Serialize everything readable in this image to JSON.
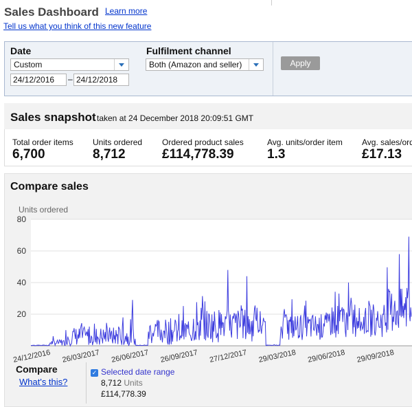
{
  "header": {
    "title": "Sales Dashboard",
    "learn_more": "Learn more",
    "feedback": "Tell us what you think of this new feature"
  },
  "filters": {
    "date_label": "Date",
    "date_preset": "Custom",
    "date_from": "24/12/2016",
    "date_separator": "–",
    "date_to": "24/12/2018",
    "channel_label": "Fulfilment channel",
    "channel_value": "Both (Amazon and seller)",
    "apply_label": "Apply"
  },
  "snapshot": {
    "title": "Sales snapshot",
    "timestamp": "taken at 24 December 2018 20:09:51 GMT",
    "metrics": [
      {
        "label": "Total order items",
        "value": "6,700"
      },
      {
        "label": "Units ordered",
        "value": "8,712"
      },
      {
        "label": "Ordered product sales",
        "value": "£114,778.39"
      },
      {
        "label": "Avg. units/order item",
        "value": "1.3"
      },
      {
        "label": "Avg. sales/order item",
        "value": "£17.13"
      }
    ]
  },
  "compare": {
    "title": "Compare sales",
    "compare_label": "Compare",
    "whats_this": "What's this?",
    "legend_label": "Selected date range",
    "legend_units_value": "8,712",
    "legend_units_word": "Units",
    "legend_sales": "£114,778.39"
  },
  "colors": {
    "series": "#3b3bde",
    "link": "#0033cc"
  },
  "chart_data": {
    "type": "line",
    "ylabel": "Units ordered",
    "ylim": [
      0,
      80
    ],
    "y_ticks": [
      20,
      40,
      60,
      80
    ],
    "x_ticks": [
      "24/12/2016",
      "26/03/2017",
      "26/06/2017",
      "26/09/2017",
      "27/12/2017",
      "29/03/2018",
      "29/06/2018",
      "29/09/2018"
    ],
    "grid": true,
    "series": [
      {
        "name": "Selected date range",
        "x_start": "24/12/2016",
        "interval": "day",
        "segments": [
          {
            "from_day": 0,
            "to_day": 30,
            "level": 0.3,
            "spread": 0.4
          },
          {
            "from_day": 30,
            "to_day": 55,
            "level": 2,
            "spread": 3
          },
          {
            "from_day": 55,
            "to_day": 165,
            "level": 6,
            "spread": 10
          },
          {
            "from_day": 165,
            "to_day": 185,
            "level": 0.3,
            "spread": 0.3
          },
          {
            "from_day": 185,
            "to_day": 255,
            "level": 9,
            "spread": 14
          },
          {
            "from_day": 255,
            "to_day": 370,
            "level": 13,
            "spread": 18
          },
          {
            "from_day": 370,
            "to_day": 393,
            "level": 0.3,
            "spread": 0.3
          },
          {
            "from_day": 393,
            "to_day": 470,
            "level": 12,
            "spread": 14
          },
          {
            "from_day": 470,
            "to_day": 560,
            "level": 16,
            "spread": 18
          },
          {
            "from_day": 560,
            "to_day": 600,
            "level": 22,
            "spread": 24
          }
        ],
        "peaks": [
          {
            "day": 100,
            "value": 14
          },
          {
            "day": 145,
            "value": 18
          },
          {
            "day": 160,
            "value": 29
          },
          {
            "day": 310,
            "value": 48
          },
          {
            "day": 340,
            "value": 44
          },
          {
            "day": 500,
            "value": 40
          },
          {
            "day": 580,
            "value": 58
          },
          {
            "day": 595,
            "value": 69
          }
        ]
      }
    ]
  }
}
